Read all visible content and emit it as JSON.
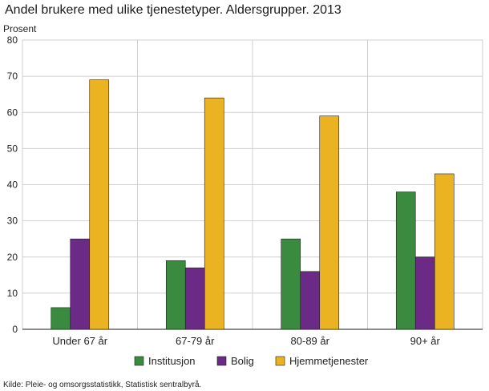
{
  "chart_data": {
    "type": "bar",
    "title": "Andel brukere med ulike tjenestetyper. Aldersgrupper. 2013",
    "ylabel": "Prosent",
    "xlabel": "",
    "ylim": [
      0,
      80
    ],
    "yticks": [
      0,
      10,
      20,
      30,
      40,
      50,
      60,
      70,
      80
    ],
    "grid": true,
    "legend_position": "bottom",
    "categories": [
      "Under 67 år",
      "67-79 år",
      "80-89 år",
      "90+ år"
    ],
    "series": [
      {
        "name": "Institusjon",
        "color": "#3a8a3f",
        "values": [
          6,
          19,
          25,
          38
        ]
      },
      {
        "name": "Bolig",
        "color": "#6a2a86",
        "values": [
          25,
          17,
          16,
          20
        ]
      },
      {
        "name": "Hjemmetjenester",
        "color": "#ebb322",
        "values": [
          69,
          64,
          59,
          43
        ]
      }
    ],
    "source": "Kilde: Pleie- og omsorgsstatistikk, Statistisk sentralbyrå."
  }
}
